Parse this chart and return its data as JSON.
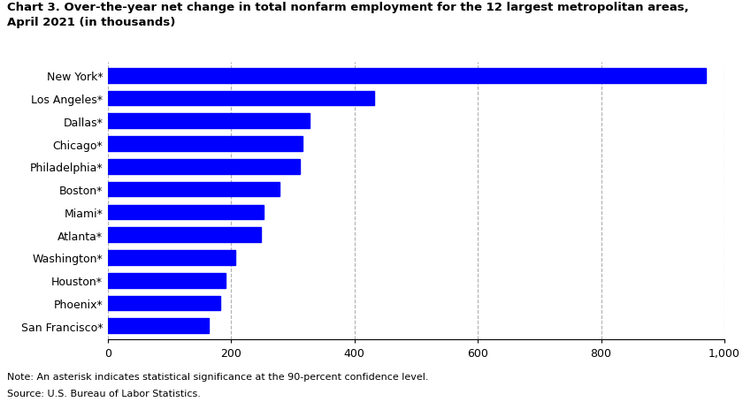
{
  "title_line1": "Chart 3. Over-the-year net change in total nonfarm employment for the 12 largest metropolitan areas,",
  "title_line2": "April 2021 (in thousands)",
  "categories": [
    "New York*",
    "Los Angeles*",
    "Dallas*",
    "Chicago*",
    "Philadelphia*",
    "Boston*",
    "Miami*",
    "Atlanta*",
    "Washington*",
    "Houston*",
    "Phoenix*",
    "San Francisco*"
  ],
  "values": [
    970,
    432,
    328,
    316,
    312,
    278,
    253,
    248,
    207,
    191,
    183,
    164
  ],
  "bar_color": "#0000ff",
  "xlim": [
    0,
    1000
  ],
  "xticks": [
    0,
    200,
    400,
    600,
    800,
    1000
  ],
  "xticklabels": [
    "0",
    "200",
    "400",
    "600",
    "800",
    "1,000"
  ],
  "grid_color": "#b0b0b0",
  "background_color": "#ffffff",
  "note_line1": "Note: An asterisk indicates statistical significance at the 90-percent confidence level.",
  "note_line2": "Source: U.S. Bureau of Labor Statistics.",
  "title_fontsize": 9.5,
  "tick_fontsize": 9,
  "note_fontsize": 8.0,
  "bar_height": 0.65
}
